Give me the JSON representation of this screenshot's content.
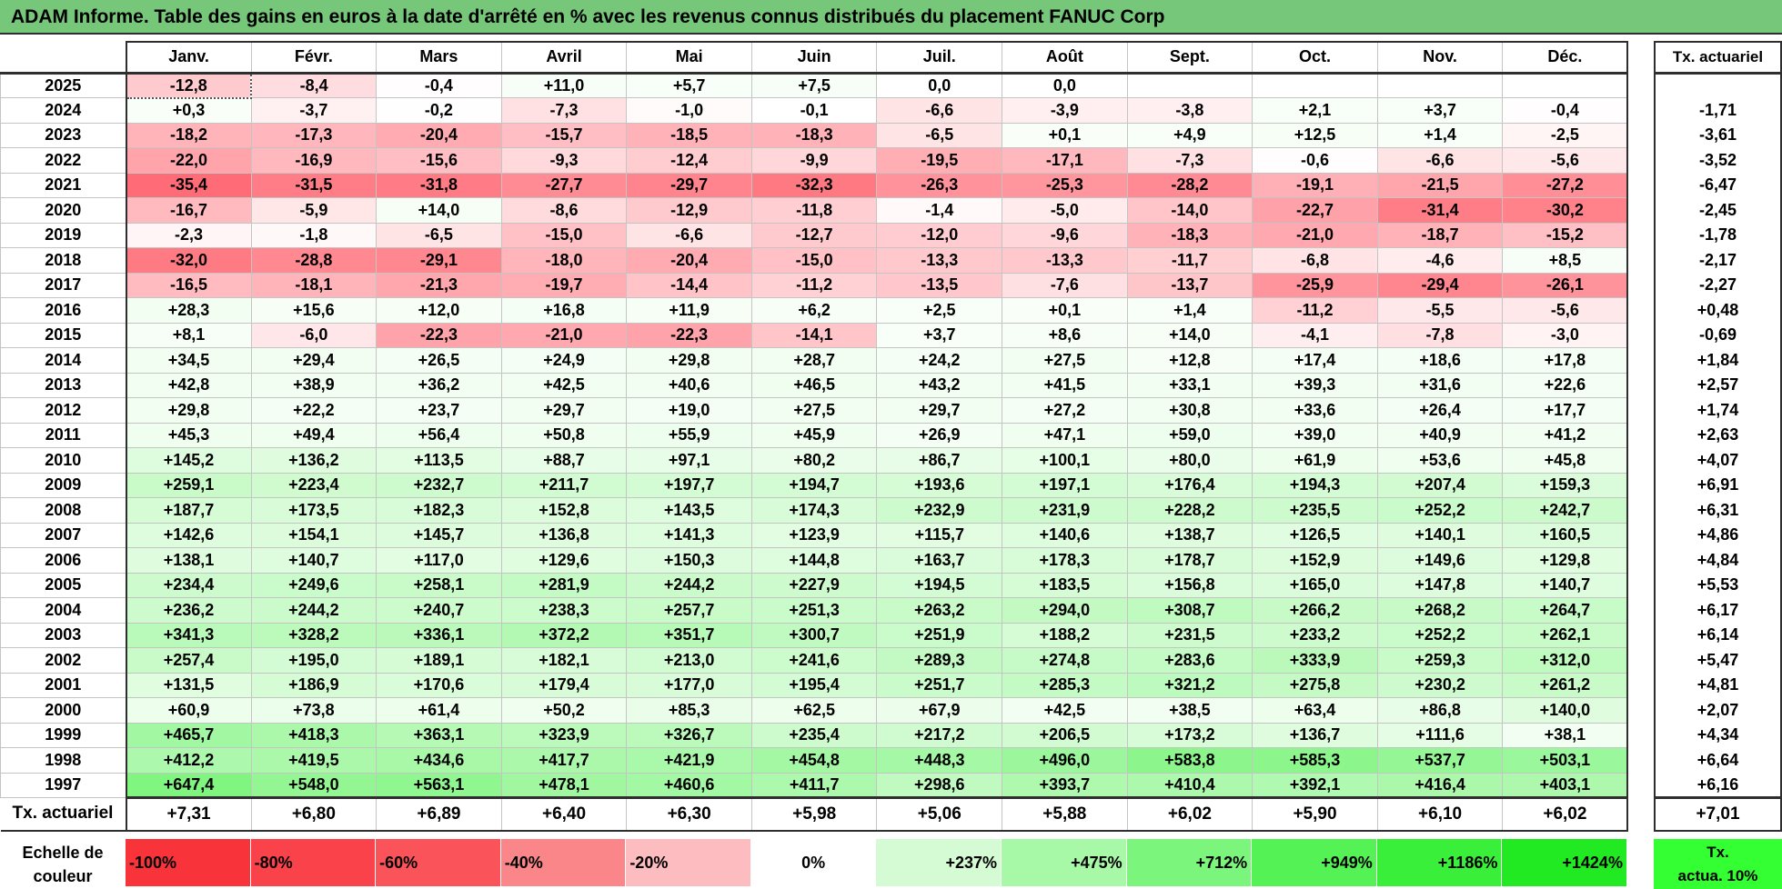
{
  "title": "ADAM Informe. Table des gains en euros à la date d'arrêté en % avec les revenus connus distribués du placement FANUC Corp",
  "months": [
    "Janv.",
    "Févr.",
    "Mars",
    "Avril",
    "Mai",
    "Juin",
    "Juil.",
    "Août",
    "Sept.",
    "Oct.",
    "Nov.",
    "Déc."
  ],
  "annual_header": "Tx. actuariel",
  "rows": [
    {
      "year": "2025",
      "values": [
        "-12,8",
        "-8,4",
        "-0,4",
        "+11,0",
        "+5,7",
        "+7,5",
        "0,0",
        "0,0",
        "",
        "",
        "",
        ""
      ],
      "rate": ""
    },
    {
      "year": "2024",
      "values": [
        "+0,3",
        "-3,7",
        "-0,2",
        "-7,3",
        "-1,0",
        "-0,1",
        "-6,6",
        "-3,9",
        "-3,8",
        "+2,1",
        "+3,7",
        "-0,4"
      ],
      "rate": "-1,71"
    },
    {
      "year": "2023",
      "values": [
        "-18,2",
        "-17,3",
        "-20,4",
        "-15,7",
        "-18,5",
        "-18,3",
        "-6,5",
        "+0,1",
        "+4,9",
        "+12,5",
        "+1,4",
        "-2,5"
      ],
      "rate": "-3,61"
    },
    {
      "year": "2022",
      "values": [
        "-22,0",
        "-16,9",
        "-15,6",
        "-9,3",
        "-12,4",
        "-9,9",
        "-19,5",
        "-17,1",
        "-7,3",
        "-0,6",
        "-6,6",
        "-5,6"
      ],
      "rate": "-3,52"
    },
    {
      "year": "2021",
      "values": [
        "-35,4",
        "-31,5",
        "-31,8",
        "-27,7",
        "-29,7",
        "-32,3",
        "-26,3",
        "-25,3",
        "-28,2",
        "-19,1",
        "-21,5",
        "-27,2"
      ],
      "rate": "-6,47"
    },
    {
      "year": "2020",
      "values": [
        "-16,7",
        "-5,9",
        "+14,0",
        "-8,6",
        "-12,9",
        "-11,8",
        "-1,4",
        "-5,0",
        "-14,0",
        "-22,7",
        "-31,4",
        "-30,2"
      ],
      "rate": "-2,45"
    },
    {
      "year": "2019",
      "values": [
        "-2,3",
        "-1,8",
        "-6,5",
        "-15,0",
        "-6,6",
        "-12,7",
        "-12,0",
        "-9,6",
        "-18,3",
        "-21,0",
        "-18,7",
        "-15,2"
      ],
      "rate": "-1,78"
    },
    {
      "year": "2018",
      "values": [
        "-32,0",
        "-28,8",
        "-29,1",
        "-18,0",
        "-20,4",
        "-15,0",
        "-13,3",
        "-13,3",
        "-11,7",
        "-6,8",
        "-4,6",
        "+8,5"
      ],
      "rate": "-2,17"
    },
    {
      "year": "2017",
      "values": [
        "-16,5",
        "-18,1",
        "-21,3",
        "-19,7",
        "-14,4",
        "-11,2",
        "-13,5",
        "-7,6",
        "-13,7",
        "-25,9",
        "-29,4",
        "-26,1"
      ],
      "rate": "-2,27"
    },
    {
      "year": "2016",
      "values": [
        "+28,3",
        "+15,6",
        "+12,0",
        "+16,8",
        "+11,9",
        "+6,2",
        "+2,5",
        "+0,1",
        "+1,4",
        "-11,2",
        "-5,5",
        "-5,6"
      ],
      "rate": "+0,48"
    },
    {
      "year": "2015",
      "values": [
        "+8,1",
        "-6,0",
        "-22,3",
        "-21,0",
        "-22,3",
        "-14,1",
        "+3,7",
        "+8,6",
        "+14,0",
        "-4,1",
        "-7,8",
        "-3,0"
      ],
      "rate": "-0,69"
    },
    {
      "year": "2014",
      "values": [
        "+34,5",
        "+29,4",
        "+26,5",
        "+24,9",
        "+29,8",
        "+28,7",
        "+24,2",
        "+27,5",
        "+12,8",
        "+17,4",
        "+18,6",
        "+17,8"
      ],
      "rate": "+1,84"
    },
    {
      "year": "2013",
      "values": [
        "+42,8",
        "+38,9",
        "+36,2",
        "+42,5",
        "+40,6",
        "+46,5",
        "+43,2",
        "+41,5",
        "+33,1",
        "+39,3",
        "+31,6",
        "+22,6"
      ],
      "rate": "+2,57"
    },
    {
      "year": "2012",
      "values": [
        "+29,8",
        "+22,2",
        "+23,7",
        "+29,7",
        "+19,0",
        "+27,5",
        "+29,7",
        "+27,2",
        "+30,8",
        "+33,6",
        "+26,4",
        "+17,7"
      ],
      "rate": "+1,74"
    },
    {
      "year": "2011",
      "values": [
        "+45,3",
        "+49,4",
        "+56,4",
        "+50,8",
        "+55,9",
        "+45,9",
        "+26,9",
        "+47,1",
        "+59,0",
        "+39,0",
        "+40,9",
        "+41,2"
      ],
      "rate": "+2,63"
    },
    {
      "year": "2010",
      "values": [
        "+145,2",
        "+136,2",
        "+113,5",
        "+88,7",
        "+97,1",
        "+80,2",
        "+86,7",
        "+100,1",
        "+80,0",
        "+61,9",
        "+53,6",
        "+45,8"
      ],
      "rate": "+4,07"
    },
    {
      "year": "2009",
      "values": [
        "+259,1",
        "+223,4",
        "+232,7",
        "+211,7",
        "+197,7",
        "+194,7",
        "+193,6",
        "+197,1",
        "+176,4",
        "+194,3",
        "+207,4",
        "+159,3"
      ],
      "rate": "+6,91"
    },
    {
      "year": "2008",
      "values": [
        "+187,7",
        "+173,5",
        "+182,3",
        "+152,8",
        "+143,5",
        "+174,3",
        "+232,9",
        "+231,9",
        "+228,2",
        "+235,5",
        "+252,2",
        "+242,7"
      ],
      "rate": "+6,31"
    },
    {
      "year": "2007",
      "values": [
        "+142,6",
        "+154,1",
        "+145,7",
        "+136,8",
        "+141,3",
        "+123,9",
        "+115,7",
        "+140,6",
        "+138,7",
        "+126,5",
        "+140,1",
        "+160,5"
      ],
      "rate": "+4,86"
    },
    {
      "year": "2006",
      "values": [
        "+138,1",
        "+140,7",
        "+117,0",
        "+129,6",
        "+150,3",
        "+144,8",
        "+163,7",
        "+178,3",
        "+178,7",
        "+152,9",
        "+149,6",
        "+129,8"
      ],
      "rate": "+4,84"
    },
    {
      "year": "2005",
      "values": [
        "+234,4",
        "+249,6",
        "+258,1",
        "+281,9",
        "+244,2",
        "+227,9",
        "+194,5",
        "+183,5",
        "+156,8",
        "+165,0",
        "+147,8",
        "+140,7"
      ],
      "rate": "+5,53"
    },
    {
      "year": "2004",
      "values": [
        "+236,2",
        "+244,2",
        "+240,7",
        "+238,3",
        "+257,7",
        "+251,3",
        "+263,2",
        "+294,0",
        "+308,7",
        "+266,2",
        "+268,2",
        "+264,7"
      ],
      "rate": "+6,17"
    },
    {
      "year": "2003",
      "values": [
        "+341,3",
        "+328,2",
        "+336,1",
        "+372,2",
        "+351,7",
        "+300,7",
        "+251,9",
        "+188,2",
        "+231,5",
        "+233,2",
        "+252,2",
        "+262,1"
      ],
      "rate": "+6,14"
    },
    {
      "year": "2002",
      "values": [
        "+257,4",
        "+195,0",
        "+189,1",
        "+182,1",
        "+213,0",
        "+241,6",
        "+289,3",
        "+274,8",
        "+283,6",
        "+333,9",
        "+259,3",
        "+312,0"
      ],
      "rate": "+5,47"
    },
    {
      "year": "2001",
      "values": [
        "+131,5",
        "+186,9",
        "+170,6",
        "+179,4",
        "+177,0",
        "+195,4",
        "+251,7",
        "+285,3",
        "+321,2",
        "+275,8",
        "+230,2",
        "+261,2"
      ],
      "rate": "+4,81"
    },
    {
      "year": "2000",
      "values": [
        "+60,9",
        "+73,8",
        "+61,4",
        "+50,2",
        "+85,3",
        "+62,5",
        "+67,9",
        "+42,5",
        "+38,5",
        "+63,4",
        "+86,8",
        "+140,0"
      ],
      "rate": "+2,07"
    },
    {
      "year": "1999",
      "values": [
        "+465,7",
        "+418,3",
        "+363,1",
        "+323,9",
        "+326,7",
        "+235,4",
        "+217,2",
        "+206,5",
        "+173,2",
        "+136,7",
        "+111,6",
        "+38,1"
      ],
      "rate": "+4,34"
    },
    {
      "year": "1998",
      "values": [
        "+412,2",
        "+419,5",
        "+434,6",
        "+417,7",
        "+421,9",
        "+454,8",
        "+448,3",
        "+496,0",
        "+583,8",
        "+585,3",
        "+537,7",
        "+503,1"
      ],
      "rate": "+6,64"
    },
    {
      "year": "1997",
      "values": [
        "+647,4",
        "+548,0",
        "+563,1",
        "+478,1",
        "+460,6",
        "+411,7",
        "+298,6",
        "+393,7",
        "+410,4",
        "+392,1",
        "+416,4",
        "+403,1"
      ],
      "rate": "+6,16"
    }
  ],
  "footer": {
    "label": "Tx. actuariel",
    "values": [
      "+7,31",
      "+6,80",
      "+6,89",
      "+6,40",
      "+6,30",
      "+5,98",
      "+5,06",
      "+5,88",
      "+6,02",
      "+5,90",
      "+6,10",
      "+6,02"
    ],
    "rate": "+7,01"
  },
  "scale": {
    "label": "Echelle de\ncouleur",
    "items": [
      {
        "label": "-100%",
        "color": "#f8333a"
      },
      {
        "label": "-80%",
        "color": "#f9424a"
      },
      {
        "label": "-60%",
        "color": "#fa535a"
      },
      {
        "label": "-40%",
        "color": "#fb868a"
      },
      {
        "label": "-20%",
        "color": "#fdbcbf"
      },
      {
        "label": "0%",
        "color": "#ffffff"
      },
      {
        "label": "+237%",
        "color": "#d5fbd5"
      },
      {
        "label": "+475%",
        "color": "#a7f8a7"
      },
      {
        "label": "+712%",
        "color": "#7cf57c"
      },
      {
        "label": "+949%",
        "color": "#55f255"
      },
      {
        "label": "+1186%",
        "color": "#3aef3a"
      },
      {
        "label": "+1424%",
        "color": "#22ea22"
      }
    ],
    "actua_label": "Tx.\nactua. 10%",
    "actua_color": "#33ff33"
  },
  "colors": {
    "title_bg": "#76c779",
    "neg_full": "#ff6a75",
    "pos_full": "#5ef25e"
  }
}
